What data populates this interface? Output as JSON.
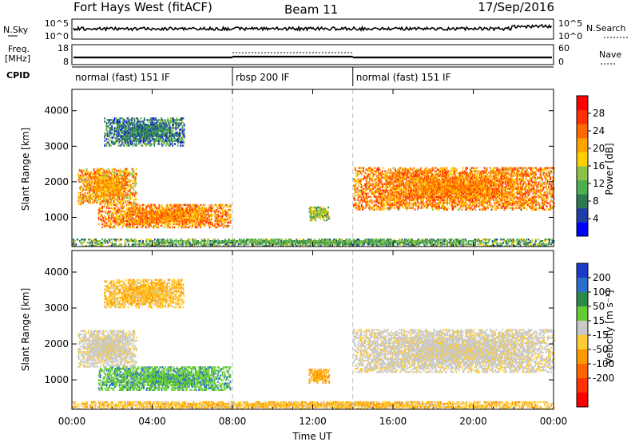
{
  "header": {
    "station": "Fort Hays West (fitACF)",
    "beam": "Beam 11",
    "date": "17/Sep/2016"
  },
  "summary_panels": {
    "nsky_label": "N.Sky",
    "nsearch_label": "N.Search",
    "freq_label_line1": "Freq.",
    "freq_label_line2": "[MHz]",
    "nave_label": "Nave",
    "cpid_label": "CPID",
    "nsky_ticks": [
      "10^5",
      "10^0"
    ],
    "nsearch_ticks": [
      "10^5",
      "10^0"
    ],
    "freq_ticks": [
      "18",
      "8"
    ],
    "nave_ticks": [
      "60",
      "0"
    ]
  },
  "cpid_segments": [
    {
      "label": "normal (fast) 151 IF",
      "start": 0,
      "end": 8
    },
    {
      "label": "rbsp 200 IF",
      "start": 8,
      "end": 14
    },
    {
      "label": "normal (fast) 151 IF",
      "start": 14,
      "end": 24
    }
  ],
  "chart_data": [
    {
      "type": "heatmap",
      "name": "power",
      "ylabel": "Slant Range [km]",
      "xlabel": "",
      "xlim": [
        0,
        24
      ],
      "ylim": [
        180,
        4600
      ],
      "yticks": [
        1000,
        2000,
        3000,
        4000
      ],
      "colorbar_label": "Power [dB]",
      "colorbar_ticks": [
        4,
        8,
        12,
        16,
        20,
        24,
        28
      ],
      "colorbar_range": [
        0,
        32
      ],
      "colorbar_colors": [
        "#0000ff",
        "#1f3fa8",
        "#2c7a50",
        "#4caf50",
        "#8bc34a",
        "#ffd000",
        "#ffa500",
        "#ff6a00",
        "#ff3000",
        "#ff0000"
      ],
      "echo_regions": [
        {
          "t_start": 0.3,
          "t_end": 3.2,
          "range_start": 1350,
          "range_end": 2350,
          "level": 0.65
        },
        {
          "t_start": 1.3,
          "t_end": 7.9,
          "range_start": 700,
          "range_end": 1350,
          "level": 0.7
        },
        {
          "t_start": 1.6,
          "t_end": 5.6,
          "range_start": 3000,
          "range_end": 3800,
          "level": 0.25
        },
        {
          "t_start": 11.8,
          "t_end": 12.8,
          "range_start": 900,
          "range_end": 1300,
          "level": 0.45
        },
        {
          "t_start": 14.0,
          "t_end": 24.0,
          "range_start": 1200,
          "range_end": 2400,
          "level": 0.7
        },
        {
          "t_start": 0.0,
          "t_end": 24.0,
          "range_start": 180,
          "range_end": 380,
          "level": 0.35
        }
      ]
    },
    {
      "type": "heatmap",
      "name": "velocity",
      "ylabel": "Slant Range [km]",
      "xlabel": "Time UT",
      "xlim": [
        0,
        24
      ],
      "ylim": [
        180,
        4600
      ],
      "yticks": [
        1000,
        2000,
        3000,
        4000
      ],
      "xticks": [
        "00:00",
        "04:00",
        "08:00",
        "12:00",
        "16:00",
        "20:00",
        "00:00"
      ],
      "colorbar_label": "Velocity [m s⁻¹]",
      "colorbar_ticks": [
        "200",
        "100",
        "50",
        "15",
        "-15",
        "-50",
        "-100",
        "-200"
      ],
      "colorbar_colors": [
        "#1b3bc8",
        "#2a6fd0",
        "#2a8a4a",
        "#66cc33",
        "#c8c8c8",
        "#ffcc33",
        "#ff9900",
        "#ff6600",
        "#ff3300",
        "#ff0000"
      ],
      "echo_regions": [
        {
          "t_start": 0.3,
          "t_end": 3.2,
          "range_start": 1350,
          "range_end": 2350,
          "velocity": 0
        },
        {
          "t_start": 1.3,
          "t_end": 7.9,
          "range_start": 700,
          "range_end": 1350,
          "velocity": 60
        },
        {
          "t_start": 1.6,
          "t_end": 5.6,
          "range_start": 3000,
          "range_end": 3800,
          "velocity": -40
        },
        {
          "t_start": 11.8,
          "t_end": 12.8,
          "range_start": 900,
          "range_end": 1300,
          "velocity": -60
        },
        {
          "t_start": 14.0,
          "t_end": 24.0,
          "range_start": 1200,
          "range_end": 2400,
          "velocity": 0
        },
        {
          "t_start": 0.0,
          "t_end": 24.0,
          "range_start": 180,
          "range_end": 380,
          "velocity": -40
        }
      ]
    }
  ]
}
